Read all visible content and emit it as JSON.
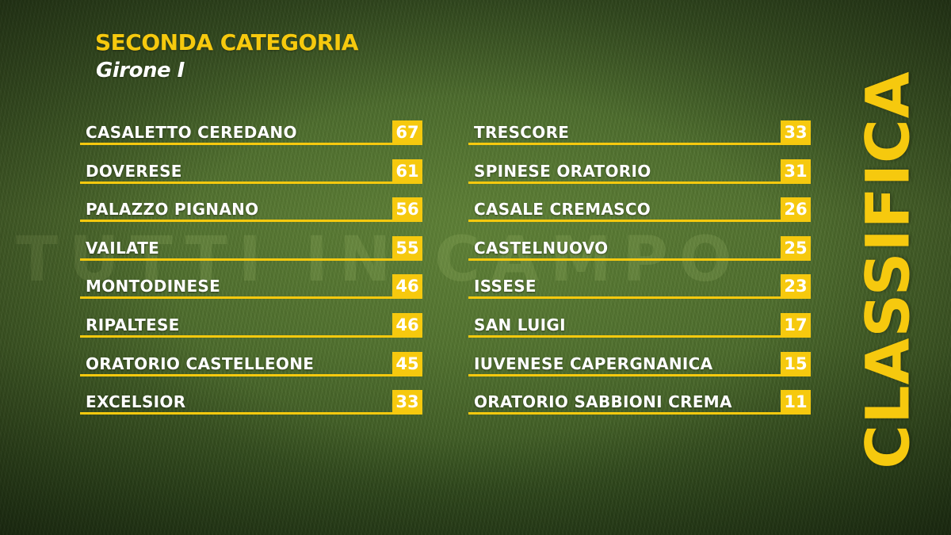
{
  "header": {
    "title": "SECONDA CATEGORIA",
    "subtitle": "Girone I"
  },
  "side_label": "CLASSIFICA",
  "watermark": "TUTTI IN CAMPO",
  "colors": {
    "accent": "#f6c90e",
    "text": "#ffffff",
    "background": "#4b6a2b"
  },
  "standings": {
    "left": [
      {
        "team": "CASALETTO CEREDANO",
        "points": "67"
      },
      {
        "team": "DOVERESE",
        "points": "61"
      },
      {
        "team": "PALAZZO PIGNANO",
        "points": "56"
      },
      {
        "team": "VAILATE",
        "points": "55"
      },
      {
        "team": "MONTODINESE",
        "points": "46"
      },
      {
        "team": "RIPALTESE",
        "points": "46"
      },
      {
        "team": "ORATORIO CASTELLEONE",
        "points": "45"
      },
      {
        "team": "EXCELSIOR",
        "points": "33"
      }
    ],
    "right": [
      {
        "team": "TRESCORE",
        "points": "33"
      },
      {
        "team": "SPINESE ORATORIO",
        "points": "31"
      },
      {
        "team": "CASALE CREMASCO",
        "points": "26"
      },
      {
        "team": "CASTELNUOVO",
        "points": "25"
      },
      {
        "team": "ISSESE",
        "points": "23"
      },
      {
        "team": "SAN LUIGI",
        "points": "17"
      },
      {
        "team": "IUVENESE CAPERGNANICA",
        "points": "15"
      },
      {
        "team": "ORATORIO SABBIONI CREMA",
        "points": "11"
      }
    ]
  }
}
